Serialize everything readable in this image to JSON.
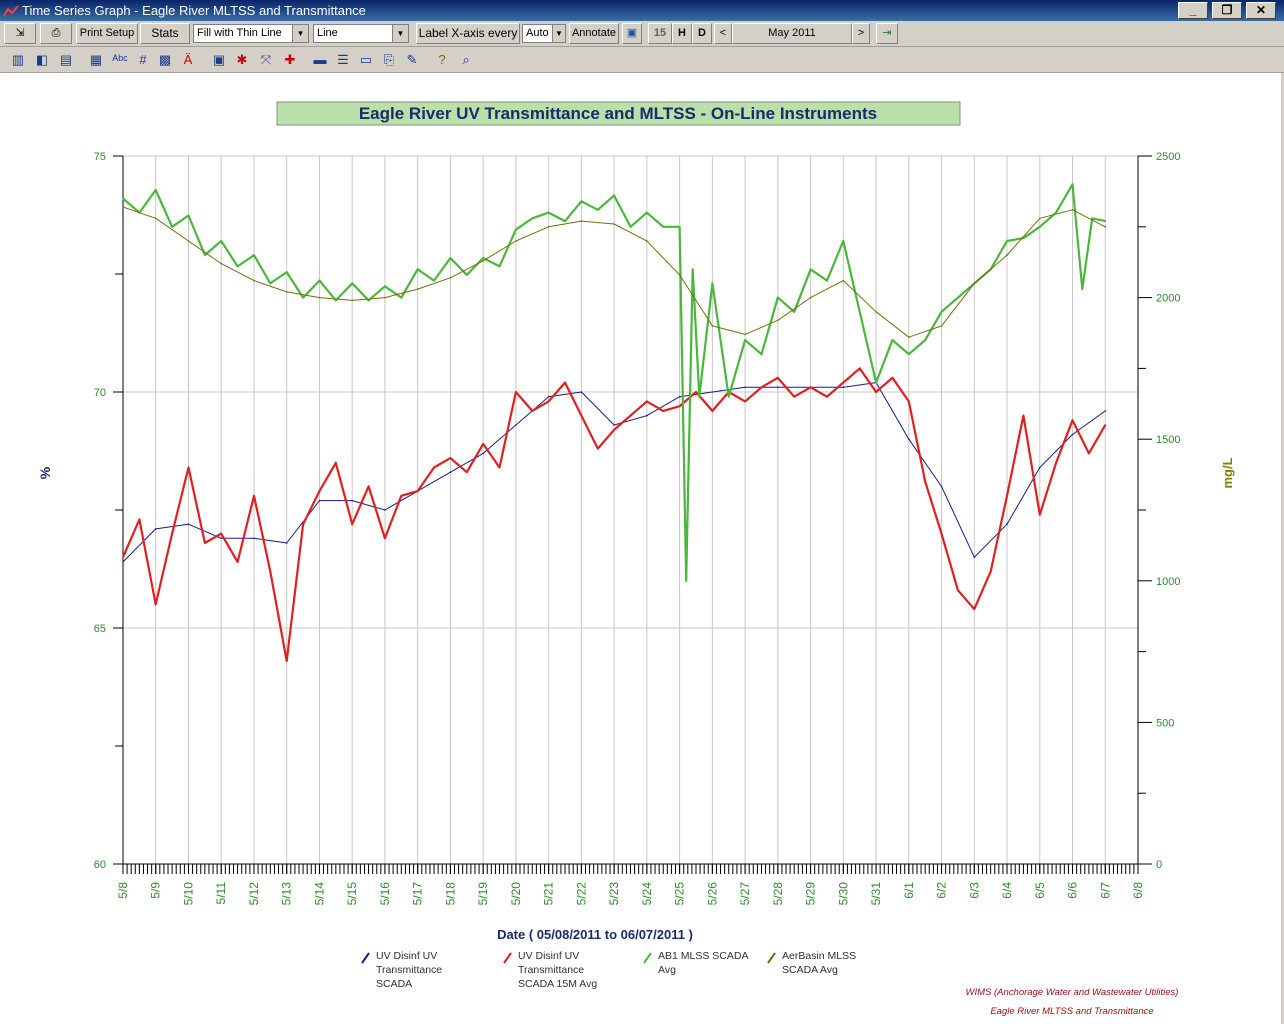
{
  "window": {
    "title": "Time Series Graph - Eagle River MLTSS and Transmittance"
  },
  "toolbar": {
    "print_setup": "Print Setup",
    "stats": "Stats",
    "fill_select": "Fill with Thin Line",
    "type_select": "Line",
    "label_x_axis": "Label X-axis every",
    "label_x_value": "Auto",
    "annotate": "Annotate",
    "btn_15": "15",
    "btn_h": "H",
    "btn_d": "D",
    "period": "May 2011",
    "prev": "<",
    "next": ">"
  },
  "icons": {
    "row1": [
      "export-icon",
      "print-icon",
      "save-icon",
      "exit-icon"
    ],
    "row2": [
      "bar-chart-icon",
      "area-chart-icon",
      "stacked-chart-icon",
      "table-icon",
      "text-abc-icon",
      "grid-icon",
      "plot-icon",
      "font-color-icon",
      "border-icon",
      "scatter-icon",
      "fit-icon",
      "cross-icon",
      "legend-icon",
      "list-icon",
      "label-icon",
      "copy-icon",
      "pen-icon",
      "help-icon",
      "zoom-icon"
    ]
  },
  "chart_data": {
    "type": "line",
    "title": "Eagle River UV Transmittance and MLTSS - On-Line Instruments",
    "xlabel": "Date  ( 05/08/2011  to  06/07/2011 )",
    "ylabel_left": "%",
    "ylabel_right": "mg/L",
    "ylim_left": [
      60,
      75
    ],
    "ylim_right": [
      0,
      2500
    ],
    "yticks_left": [
      "60",
      "65",
      "70",
      "75"
    ],
    "yticks_right": [
      "0",
      "500",
      "1000",
      "1500",
      "2000",
      "2500"
    ],
    "x_ticks": [
      "5/8",
      "5/9",
      "5/10",
      "5/11",
      "5/12",
      "5/13",
      "5/14",
      "5/15",
      "5/16",
      "5/17",
      "5/18",
      "5/19",
      "5/20",
      "5/21",
      "5/22",
      "5/23",
      "5/24",
      "5/25",
      "5/26",
      "5/27",
      "5/28",
      "5/29",
      "5/30",
      "5/31",
      "6/1",
      "6/2",
      "6/3",
      "6/4",
      "6/5",
      "6/6",
      "6/7",
      "6/8"
    ],
    "grid": true,
    "legend_position": "bottom",
    "series": [
      {
        "name": "UV Disinf UV Transmittance SCADA",
        "axis": "left",
        "color": "#1a1a8c",
        "x": [
          "5/8",
          "5/9",
          "5/10",
          "5/11",
          "5/12",
          "5/13",
          "5/14",
          "5/15",
          "5/16",
          "5/17",
          "5/18",
          "5/19",
          "5/20",
          "5/21",
          "5/22",
          "5/23",
          "5/24",
          "5/25",
          "5/26",
          "5/27",
          "5/28",
          "5/29",
          "5/30",
          "5/31",
          "6/1",
          "6/2",
          "6/3",
          "6/4",
          "6/5",
          "6/6",
          "6/7"
        ],
        "values": [
          66.4,
          67.1,
          67.2,
          66.9,
          66.9,
          66.8,
          67.7,
          67.7,
          67.5,
          67.9,
          68.3,
          68.7,
          69.3,
          69.9,
          70.0,
          69.3,
          69.5,
          69.9,
          70.0,
          70.1,
          70.1,
          70.1,
          70.1,
          70.2,
          69.0,
          68.0,
          66.5,
          67.2,
          68.4,
          69.1,
          69.6
        ]
      },
      {
        "name": "UV Disinf UV Transmittance SCADA 15M Avg",
        "axis": "left",
        "color": "#e02020",
        "x": [
          "5/8",
          "5/8.5",
          "5/9",
          "5/9.5",
          "5/10",
          "5/10.5",
          "5/11",
          "5/11.5",
          "5/12",
          "5/12.5",
          "5/13",
          "5/13.5",
          "5/14",
          "5/14.5",
          "5/15",
          "5/15.5",
          "5/16",
          "5/16.5",
          "5/17",
          "5/17.5",
          "5/18",
          "5/18.5",
          "5/19",
          "5/19.5",
          "5/20",
          "5/20.5",
          "5/21",
          "5/21.5",
          "5/22",
          "5/22.5",
          "5/23",
          "5/23.5",
          "5/24",
          "5/24.5",
          "5/25",
          "5/25.5",
          "5/26",
          "5/26.5",
          "5/27",
          "5/27.5",
          "5/28",
          "5/28.5",
          "5/29",
          "5/29.5",
          "5/30",
          "5/30.5",
          "5/31",
          "5/31.5",
          "6/1",
          "6/1.5",
          "6/2",
          "6/2.5",
          "6/3",
          "6/3.5",
          "6/4",
          "6/4.5",
          "6/5",
          "6/5.5",
          "6/6",
          "6/6.5",
          "6/7"
        ],
        "values": [
          66.5,
          67.3,
          65.5,
          67.0,
          68.4,
          66.8,
          67.0,
          66.4,
          67.8,
          66.2,
          64.3,
          67.2,
          67.9,
          68.5,
          67.2,
          68.0,
          66.9,
          67.8,
          67.9,
          68.4,
          68.6,
          68.3,
          68.9,
          68.4,
          70.0,
          69.6,
          69.8,
          70.2,
          69.5,
          68.8,
          69.2,
          69.5,
          69.8,
          69.6,
          69.7,
          70.0,
          69.6,
          70.0,
          69.8,
          70.1,
          70.3,
          69.9,
          70.1,
          69.9,
          70.2,
          70.5,
          70.0,
          70.3,
          69.8,
          68.1,
          67.0,
          65.8,
          65.4,
          66.2,
          67.8,
          69.5,
          67.4,
          68.5,
          69.4,
          68.7,
          69.3
        ]
      },
      {
        "name": "AB1 MLSS SCADA Avg",
        "axis": "right",
        "color": "#49b83a",
        "x": [
          "5/8",
          "5/8.5",
          "5/9",
          "5/9.5",
          "5/10",
          "5/10.5",
          "5/11",
          "5/11.5",
          "5/12",
          "5/12.5",
          "5/13",
          "5/13.5",
          "5/14",
          "5/14.5",
          "5/15",
          "5/15.5",
          "5/16",
          "5/16.5",
          "5/17",
          "5/17.5",
          "5/18",
          "5/18.5",
          "5/19",
          "5/19.5",
          "5/20",
          "5/20.5",
          "5/21",
          "5/21.5",
          "5/22",
          "5/22.5",
          "5/23",
          "5/23.5",
          "5/24",
          "5/24.5",
          "5/25",
          "5/25.2",
          "5/25.4",
          "5/25.6",
          "5/26",
          "5/26.5",
          "5/27",
          "5/27.5",
          "5/28",
          "5/28.5",
          "5/29",
          "5/29.5",
          "5/30",
          "5/30.5",
          "5/31",
          "5/31.5",
          "6/1",
          "6/1.5",
          "6/2",
          "6/2.5",
          "6/3",
          "6/3.5",
          "6/4",
          "6/4.5",
          "6/5",
          "6/5.5",
          "6/6",
          "6/6.3",
          "6/6.6",
          "6/7"
        ],
        "values": [
          2350,
          2300,
          2380,
          2250,
          2290,
          2150,
          2200,
          2110,
          2150,
          2050,
          2090,
          2000,
          2060,
          1990,
          2050,
          1990,
          2040,
          2000,
          2100,
          2060,
          2140,
          2080,
          2140,
          2110,
          2240,
          2280,
          2300,
          2270,
          2340,
          2310,
          2360,
          2250,
          2300,
          2250,
          2250,
          1000,
          2100,
          1650,
          2050,
          1650,
          1850,
          1800,
          2000,
          1950,
          2100,
          2060,
          2200,
          1950,
          1700,
          1850,
          1800,
          1850,
          1950,
          2000,
          2050,
          2100,
          2200,
          2210,
          2250,
          2300,
          2400,
          2030,
          2280,
          2270
        ]
      },
      {
        "name": "AerBasin MLSS SCADA Avg",
        "axis": "right",
        "color": "#7a6a10",
        "x": [
          "5/8",
          "5/9",
          "5/10",
          "5/11",
          "5/12",
          "5/13",
          "5/14",
          "5/15",
          "5/16",
          "5/17",
          "5/18",
          "5/19",
          "5/20",
          "5/21",
          "5/22",
          "5/23",
          "5/24",
          "5/25",
          "5/26",
          "5/27",
          "5/28",
          "5/29",
          "5/30",
          "5/31",
          "6/1",
          "6/2",
          "6/3",
          "6/4",
          "6/5",
          "6/6",
          "6/7"
        ],
        "values": [
          2320,
          2280,
          2200,
          2120,
          2060,
          2020,
          2000,
          1990,
          2000,
          2030,
          2070,
          2130,
          2200,
          2250,
          2270,
          2260,
          2200,
          2080,
          1900,
          1870,
          1920,
          2000,
          2060,
          1950,
          1860,
          1900,
          2050,
          2150,
          2280,
          2310,
          2250
        ]
      }
    ],
    "footer": [
      "WIMS (Anchorage Water and Wastewater Utilities)",
      "Eagle River MLTSS and Transmittance"
    ]
  }
}
